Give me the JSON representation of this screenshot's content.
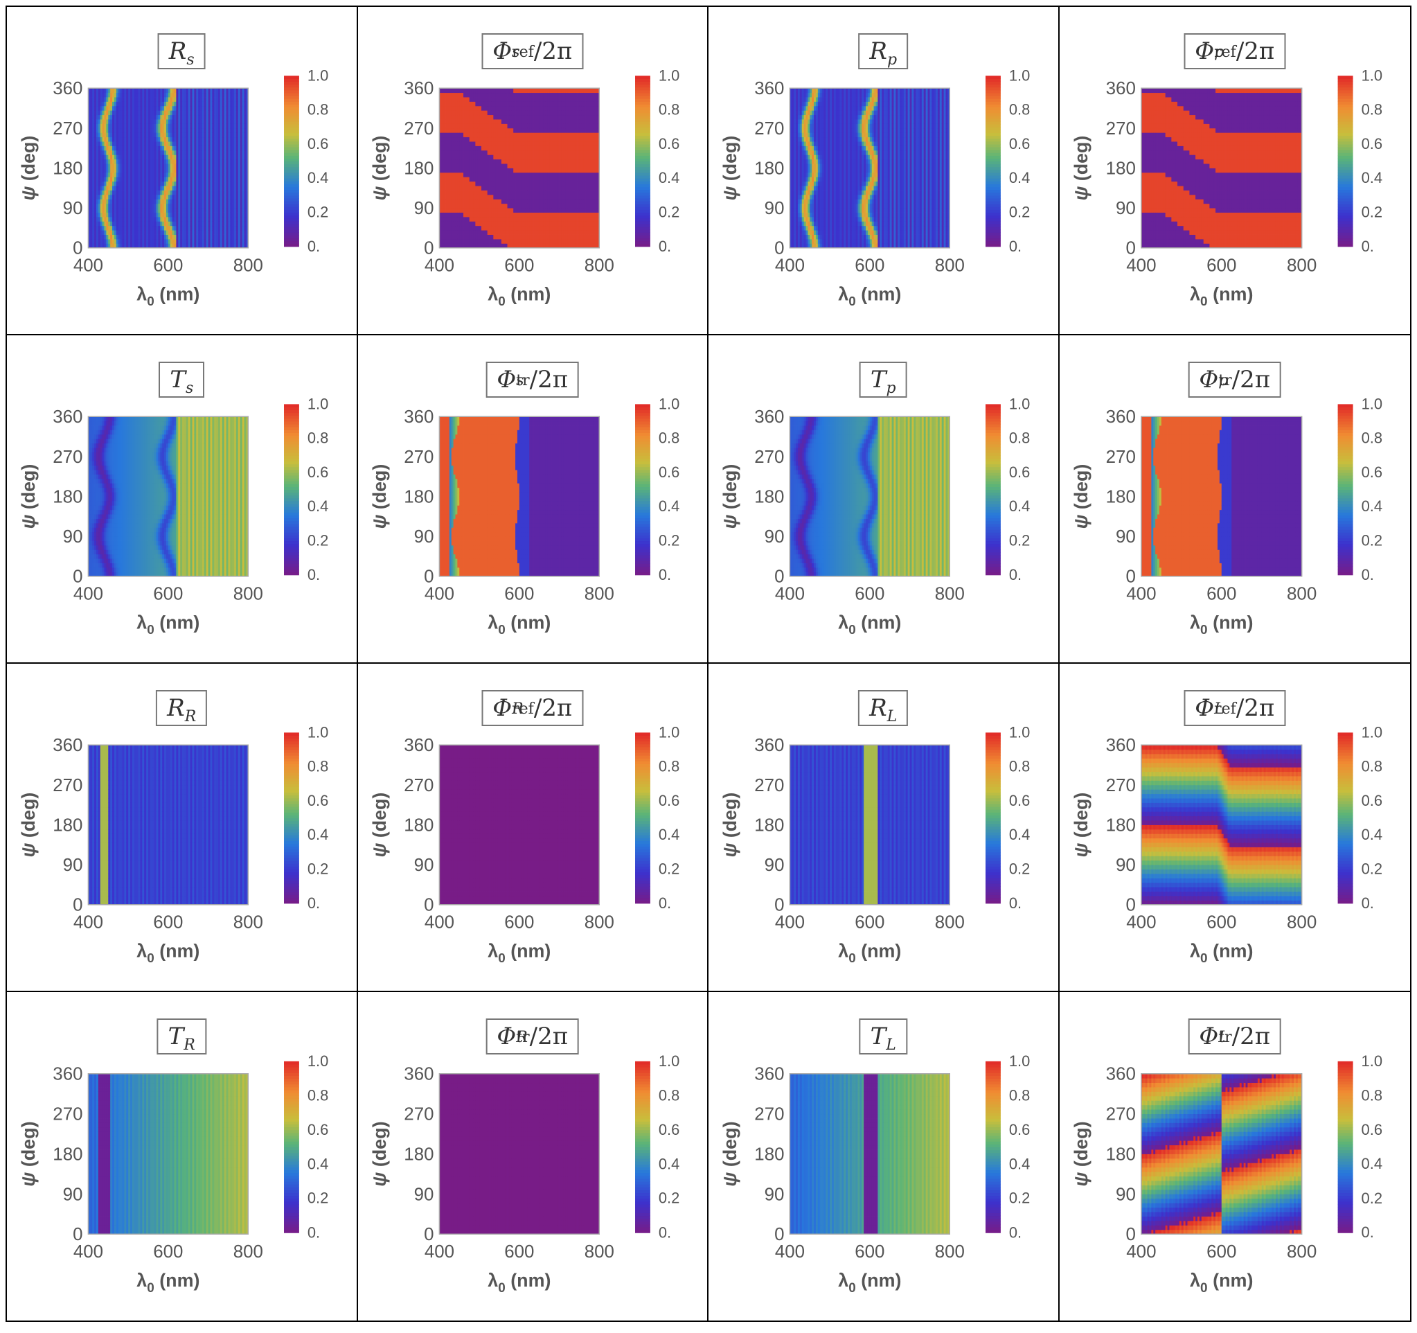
{
  "chart_data": {
    "type": "heatmap",
    "layout": "4x4 grid",
    "x_axis": {
      "label": "λ",
      "subscript": "0",
      "unit": "(nm)",
      "range": [
        400,
        800
      ],
      "ticks": [
        "400",
        "600",
        "800"
      ]
    },
    "y_axis": {
      "label": "ψ",
      "unit": "(deg)",
      "range": [
        0,
        360
      ],
      "ticks": [
        "0",
        "90",
        "180",
        "270",
        "360"
      ]
    },
    "colorbar": {
      "range": [
        0,
        1
      ],
      "ticks": [
        "0.",
        "0.2",
        "0.4",
        "0.6",
        "0.8",
        "1.0"
      ],
      "colormap": "rainbow (purple-blue-green-yellow-orange-red)"
    },
    "panels": [
      {
        "id": "R_s",
        "title_symbol": "R",
        "title_sub": "s",
        "title_sup": "",
        "title_suffix": "",
        "kind": "refl_stripes",
        "peaks_nm": [
          450,
          600
        ],
        "baseline": 0.15
      },
      {
        "id": "Phi_ref_s",
        "title_symbol": "Φ",
        "title_sub": "s",
        "title_sup": "ref",
        "title_suffix": "/2π",
        "kind": "phase_bands",
        "transition_nm": [
          450,
          590
        ]
      },
      {
        "id": "R_p",
        "title_symbol": "R",
        "title_sub": "p",
        "title_sup": "",
        "title_suffix": "",
        "kind": "refl_stripes",
        "peaks_nm": [
          450,
          600
        ],
        "baseline": 0.15
      },
      {
        "id": "Phi_ref_p",
        "title_symbol": "Φ",
        "title_sub": "p",
        "title_sup": "ref",
        "title_suffix": "/2π",
        "kind": "phase_bands",
        "transition_nm": [
          450,
          590
        ]
      },
      {
        "id": "T_s",
        "title_symbol": "T",
        "title_sub": "s",
        "title_sup": "",
        "title_suffix": "",
        "kind": "trans_smooth",
        "dips_nm": [
          440,
          600
        ]
      },
      {
        "id": "Phi_tr_s",
        "title_symbol": "Φ",
        "title_sub": "s",
        "title_sup": "tr",
        "title_suffix": "/2π",
        "kind": "phase_block",
        "block_nm": [
          440,
          595
        ]
      },
      {
        "id": "T_p",
        "title_symbol": "T",
        "title_sub": "p",
        "title_sup": "",
        "title_suffix": "",
        "kind": "trans_smooth",
        "dips_nm": [
          440,
          600
        ]
      },
      {
        "id": "Phi_tr_p",
        "title_symbol": "Φ",
        "title_sub": "p",
        "title_sup": "tr",
        "title_suffix": "/2π",
        "kind": "phase_block",
        "block_nm": [
          440,
          595
        ]
      },
      {
        "id": "R_R",
        "title_symbol": "R",
        "title_sub": "R",
        "title_sup": "",
        "title_suffix": "",
        "kind": "circ_refl",
        "peak_nm": [
          430,
          450
        ]
      },
      {
        "id": "Phi_ref_R",
        "title_symbol": "Φ",
        "title_sub": "R",
        "title_sup": "ref",
        "title_suffix": "/2π",
        "kind": "uniform",
        "value": 0.0
      },
      {
        "id": "R_L",
        "title_symbol": "R",
        "title_sub": "L",
        "title_sup": "",
        "title_suffix": "",
        "kind": "circ_refl",
        "peak_nm": [
          585,
          620
        ]
      },
      {
        "id": "Phi_ref_L",
        "title_symbol": "Φ",
        "title_sub": "L",
        "title_sup": "ref",
        "title_suffix": "/2π",
        "kind": "phase_diag_ref"
      },
      {
        "id": "T_R",
        "title_symbol": "T",
        "title_sub": "R",
        "title_sup": "",
        "title_suffix": "",
        "kind": "circ_trans",
        "dip_nm": [
          425,
          455
        ]
      },
      {
        "id": "Phi_tr_R",
        "title_symbol": "Φ",
        "title_sub": "R",
        "title_sup": "tr",
        "title_suffix": "/2π",
        "kind": "uniform",
        "value": 0.0
      },
      {
        "id": "T_L",
        "title_symbol": "T",
        "title_sub": "L",
        "title_sup": "",
        "title_suffix": "",
        "kind": "circ_trans",
        "dip_nm": [
          585,
          620
        ]
      },
      {
        "id": "Phi_tr_L",
        "title_symbol": "Φ",
        "title_sub": "L",
        "title_sup": "tr",
        "title_suffix": "/2π",
        "kind": "phase_diag_tr"
      }
    ]
  }
}
